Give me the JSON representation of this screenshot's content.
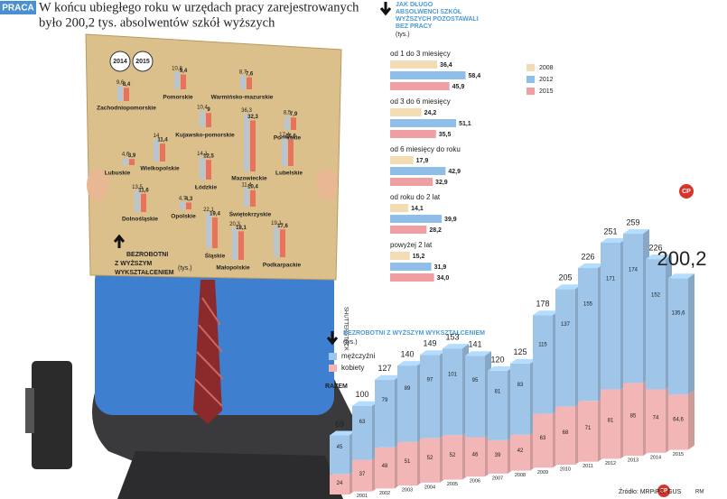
{
  "header": {
    "tag": "PRACA",
    "headline_lines": [
      "W końcu ubiegłego roku w urzędach pracy zarejestrowanych",
      "było 200,2 tys. absolwentów szkół wyższych"
    ]
  },
  "credit": "SHUTTERSTOCK",
  "source": "Źródło: MRPiPS, GUS",
  "author": "RM",
  "logo": "CP",
  "chart_data": [
    {
      "type": "bar",
      "title_lines": [
        "BEZROBOTNI",
        "Z WYŻSZYM",
        "WYKSZTAŁCENIEM"
      ],
      "unit": "(tys.)",
      "categories": [
        "Zachodniopomorskie",
        "Pomorskie",
        "Warmińsko-mazurskie",
        "Kujawsko-pomorskie",
        "Podlaskie",
        "Wielkopolskie",
        "Mazowieckie",
        "Lubuskie",
        "Łódzkie",
        "Lubelskie",
        "Dolnośląskie",
        "Opolskie",
        "Świętokrzyskie",
        "Śląskie",
        "Małopolskie",
        "Podkarpackie"
      ],
      "series": [
        {
          "name": "2014",
          "color": "#b9c6cf",
          "values": [
            9.6,
            10.8,
            8.7,
            10.4,
            8.5,
            14,
            36.3,
            4.6,
            14.1,
            17.4,
            13.5,
            4.7,
            11.4,
            22.1,
            20.3,
            19.1
          ],
          "value_labels": [
            "9,6",
            "10,8",
            "8,7",
            "10,4",
            "8,5",
            "14",
            "36,3",
            "4,6",
            "14,1",
            "17,4",
            "13,5",
            "4,7",
            "11,4",
            "22,1",
            "20,3",
            "19,1"
          ]
        },
        {
          "name": "2015",
          "color": "#e8725c",
          "values": [
            8.4,
            9.4,
            7.6,
            9,
            7.9,
            11.4,
            32.3,
            3.9,
            12.5,
            16.6,
            11.6,
            4.3,
            10.4,
            19.4,
            18.1,
            17.6
          ],
          "value_labels": [
            "8,4",
            "9,4",
            "7,6",
            "9",
            "7,9",
            "11,4",
            "32,3",
            "3,9",
            "12,5",
            "16,6",
            "11,6",
            "4,3",
            "10,4",
            "19,4",
            "18,1",
            "17,6"
          ]
        }
      ]
    },
    {
      "type": "barh",
      "title_lines": [
        "JAK DŁUGO",
        "ABSOLWENCI SZKÓŁ",
        "WYŻSZYCH POZOSTAWALI",
        "BEZ PRACY"
      ],
      "unit": "(tys.)",
      "categories": [
        "od 1 do 3 miesięcy",
        "od 3 do 6 miesięcy",
        "od 6 miesięcy do roku",
        "od roku do 2 lat",
        "powyżej 2 lat"
      ],
      "series": [
        {
          "name": "2008",
          "color": "#f3dcb4",
          "values": [
            36.4,
            24.2,
            17.9,
            14.1,
            15.2
          ],
          "value_labels": [
            "36,4",
            "24,2",
            "17,9",
            "14,1",
            "15,2"
          ]
        },
        {
          "name": "2012",
          "color": "#8fbfe8",
          "values": [
            58.4,
            51.1,
            42.9,
            39.9,
            31.9
          ],
          "value_labels": [
            "58,4",
            "51,1",
            "42,9",
            "39,9",
            "31,9"
          ]
        },
        {
          "name": "2015",
          "color": "#ef9ea1",
          "values": [
            45.9,
            35.5,
            32.9,
            28.2,
            34.0
          ],
          "value_labels": [
            "45,9",
            "35,5",
            "32,9",
            "28,2",
            "34,0"
          ]
        }
      ]
    },
    {
      "type": "stacked_bar",
      "title": "BEZROBOTNI Z WYŻSZYM WYKSZTAŁCENIEM",
      "unit": "(tys.)",
      "total_name": "RAZEM",
      "categories": [
        null,
        "2001",
        "2002",
        "2003",
        "2004",
        "2005",
        "2006",
        "2007",
        "2008",
        "2009",
        "2010",
        "2011",
        "2012",
        "2013",
        "2014",
        "2015"
      ],
      "series": [
        {
          "name": "kobiety",
          "color": "#f2b6b6",
          "values": [
            24,
            37,
            48,
            51,
            52,
            52,
            46,
            39,
            42,
            63,
            68,
            71,
            81,
            85,
            74,
            64.6
          ],
          "value_labels": [
            "24",
            "37",
            "48",
            "51",
            "52",
            "52",
            "46",
            "39",
            "42",
            "63",
            "68",
            "71",
            "81",
            "85",
            "74",
            "64,6"
          ]
        },
        {
          "name": "mężczyźni",
          "color": "#9fc5e8",
          "values": [
            45,
            63,
            79,
            89,
            97,
            101,
            95,
            81,
            83,
            115,
            137,
            155,
            171,
            174,
            152,
            135.6
          ],
          "value_labels": [
            "45",
            "63",
            "79",
            "89",
            "97",
            "101",
            "95",
            "81",
            "83",
            "115",
            "137",
            "155",
            "171",
            "174",
            "152",
            "135,6"
          ]
        }
      ],
      "totals": [
        69,
        100,
        127,
        140,
        149,
        153,
        141,
        120,
        125,
        178,
        205,
        226,
        251,
        259,
        226,
        200.2
      ],
      "total_labels": [
        "69",
        "100",
        "127",
        "140",
        "149",
        "153",
        "141",
        "120",
        "125",
        "178",
        "205",
        "226",
        "251",
        "259",
        "226",
        "200,2"
      ]
    }
  ]
}
